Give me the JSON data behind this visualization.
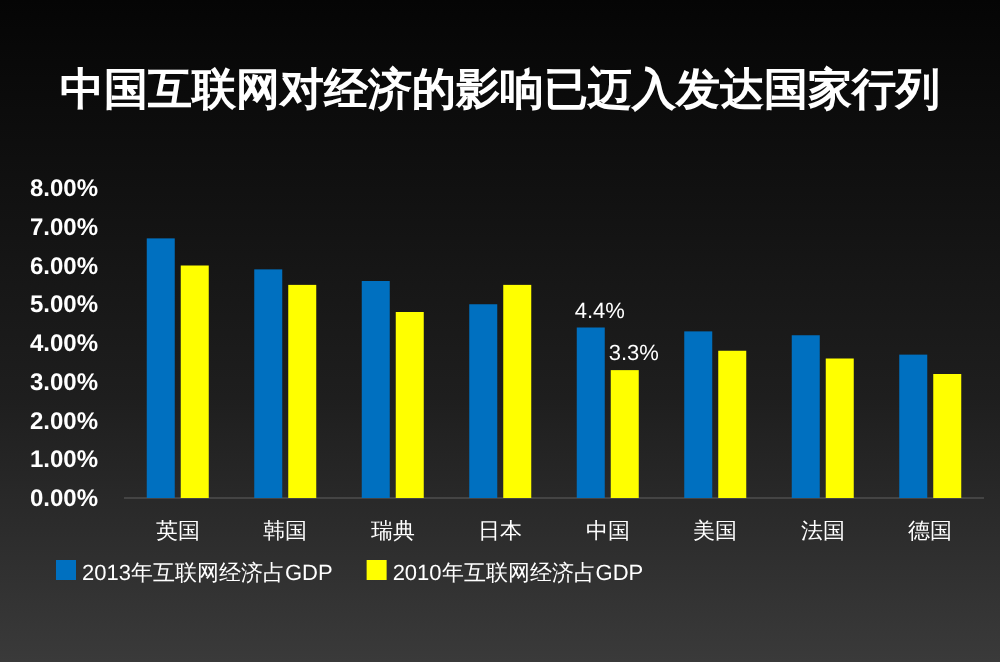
{
  "chart_data": {
    "type": "bar",
    "title": "中国互联网对经济的影响已迈入发达国家行列",
    "categories": [
      "英国",
      "韩国",
      "瑞典",
      "日本",
      "中国",
      "美国",
      "法国",
      "德国"
    ],
    "series": [
      {
        "name": "2013年互联网经济占GDP",
        "color": "#0070c0",
        "values": [
          6.7,
          5.9,
          5.6,
          5.0,
          4.4,
          4.3,
          4.2,
          3.7
        ],
        "value_labels": [
          null,
          null,
          null,
          null,
          "4.4%",
          null,
          null,
          null
        ]
      },
      {
        "name": "2010年互联网经济占GDP",
        "color": "#ffff00",
        "values": [
          6.0,
          5.5,
          4.8,
          5.5,
          3.3,
          3.8,
          3.6,
          3.2
        ],
        "value_labels": [
          null,
          null,
          null,
          null,
          "3.3%",
          null,
          null,
          null
        ]
      }
    ],
    "ylim": [
      0,
      8
    ],
    "yticks": [
      {
        "value": 0,
        "label": "0.00%"
      },
      {
        "value": 1,
        "label": "1.00%"
      },
      {
        "value": 2,
        "label": "2.00%"
      },
      {
        "value": 3,
        "label": "3.00%"
      },
      {
        "value": 4,
        "label": "4.00%"
      },
      {
        "value": 5,
        "label": "5.00%"
      },
      {
        "value": 6,
        "label": "6.00%"
      },
      {
        "value": 7,
        "label": "7.00%"
      },
      {
        "value": 8,
        "label": "8.00%"
      }
    ],
    "grid": false,
    "legend": "bottom left"
  }
}
